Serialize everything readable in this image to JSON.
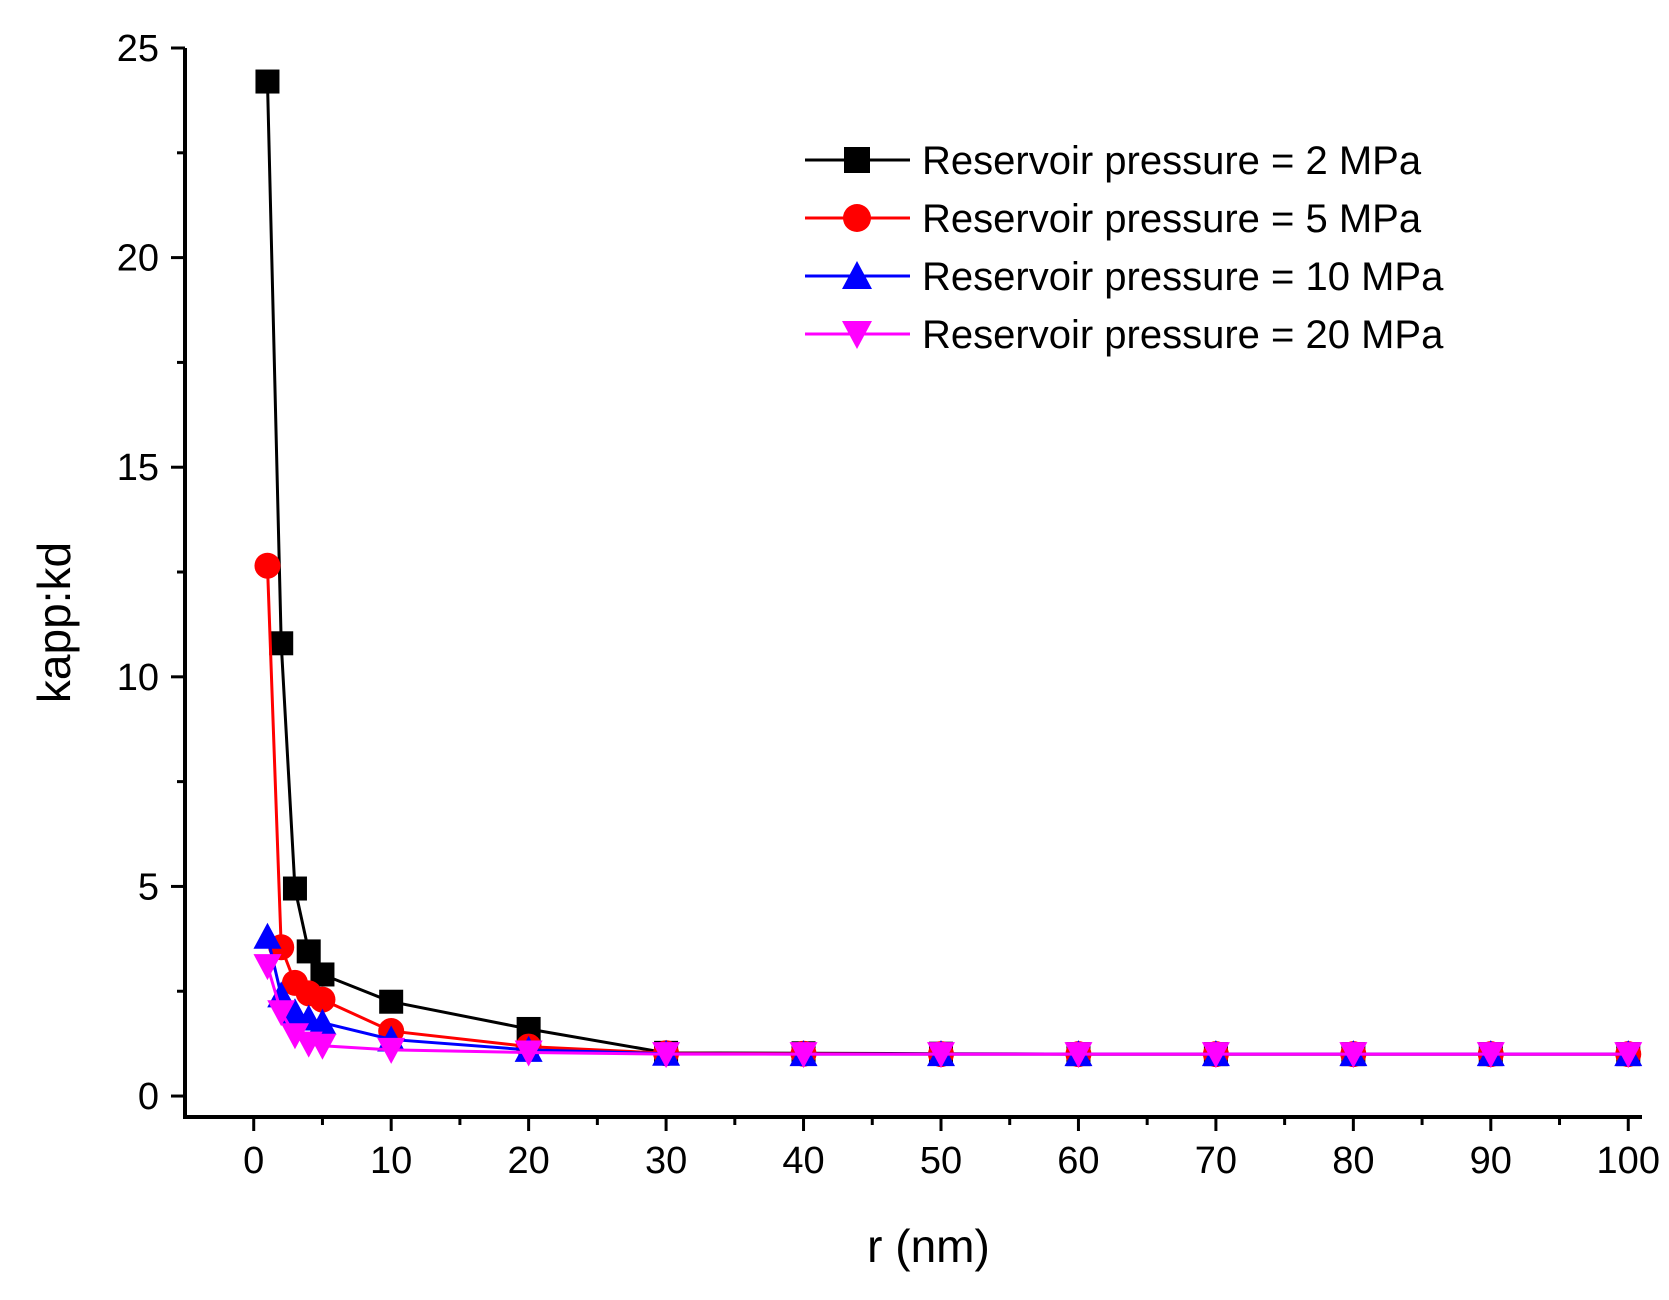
{
  "chart_data": {
    "type": "line",
    "title": "",
    "xlabel": "r (nm)",
    "ylabel": "kapp:kd",
    "xlim": [
      -5,
      101
    ],
    "ylim": [
      -0.5,
      25
    ],
    "xticks": [
      0,
      10,
      20,
      30,
      40,
      50,
      60,
      70,
      80,
      90,
      100
    ],
    "yticks": [
      0,
      5,
      10,
      15,
      20,
      25
    ],
    "grid": false,
    "legend_position": "top-right",
    "x": [
      1,
      2,
      3,
      4,
      5,
      10,
      20,
      30,
      40,
      50,
      60,
      70,
      80,
      90,
      100
    ],
    "series": [
      {
        "name": "Reservoir pressure = 2 MPa",
        "color": "#000000",
        "marker": "square",
        "values": [
          24.2,
          10.8,
          4.95,
          3.45,
          2.9,
          2.25,
          1.6,
          1.03,
          1.02,
          1.01,
          1.0,
          1.0,
          1.0,
          1.0,
          1.0
        ]
      },
      {
        "name": "Reservoir pressure = 5 MPa",
        "color": "#ff0000",
        "marker": "circle",
        "values": [
          12.65,
          3.55,
          2.7,
          2.45,
          2.3,
          1.55,
          1.18,
          1.02,
          1.01,
          1.0,
          1.0,
          1.0,
          1.0,
          1.0,
          1.0
        ]
      },
      {
        "name": "Reservoir pressure = 10 MPa",
        "color": "#0000ff",
        "marker": "triangle-up",
        "values": [
          3.8,
          2.4,
          2.0,
          1.85,
          1.75,
          1.35,
          1.1,
          1.01,
          1.0,
          1.0,
          1.0,
          1.0,
          1.0,
          1.0,
          1.0
        ]
      },
      {
        "name": "Reservoir pressure = 20 MPa",
        "color": "#ff00ff",
        "marker": "triangle-down",
        "values": [
          3.1,
          2.0,
          1.45,
          1.25,
          1.2,
          1.1,
          1.04,
          1.0,
          1.0,
          1.0,
          1.0,
          1.0,
          1.0,
          1.0,
          1.0
        ]
      }
    ]
  }
}
